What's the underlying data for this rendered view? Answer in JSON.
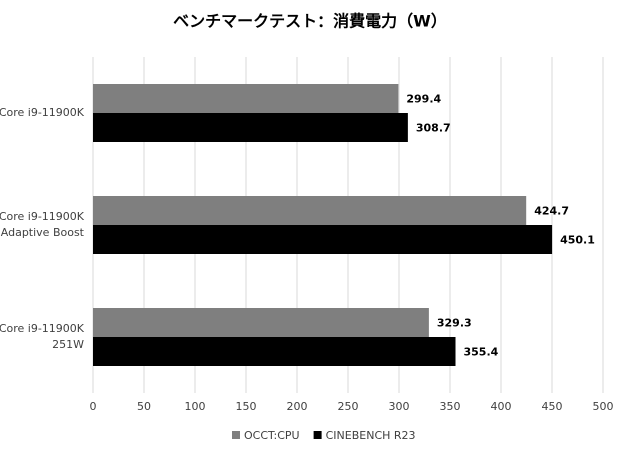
{
  "chart_data": {
    "type": "barh",
    "title": "ベンチマークテスト：消費電力（W）",
    "categories": [
      [
        "Core i9-11900K"
      ],
      [
        "Core i9-11900K",
        "Adaptive Boost"
      ],
      [
        "Core i9-11900K",
        "251W"
      ]
    ],
    "series": [
      {
        "name": "OCCT:CPU",
        "color": "#7f7f7f",
        "values": [
          299.4,
          424.7,
          329.3
        ]
      },
      {
        "name": "CINEBENCH R23",
        "color": "#000000",
        "values": [
          308.7,
          450.1,
          355.4
        ]
      }
    ],
    "xlim": [
      0,
      500
    ],
    "xticks": [
      0,
      50,
      100,
      150,
      200,
      250,
      300,
      350,
      400,
      450,
      500
    ],
    "grid": true,
    "legend": "bottom"
  }
}
